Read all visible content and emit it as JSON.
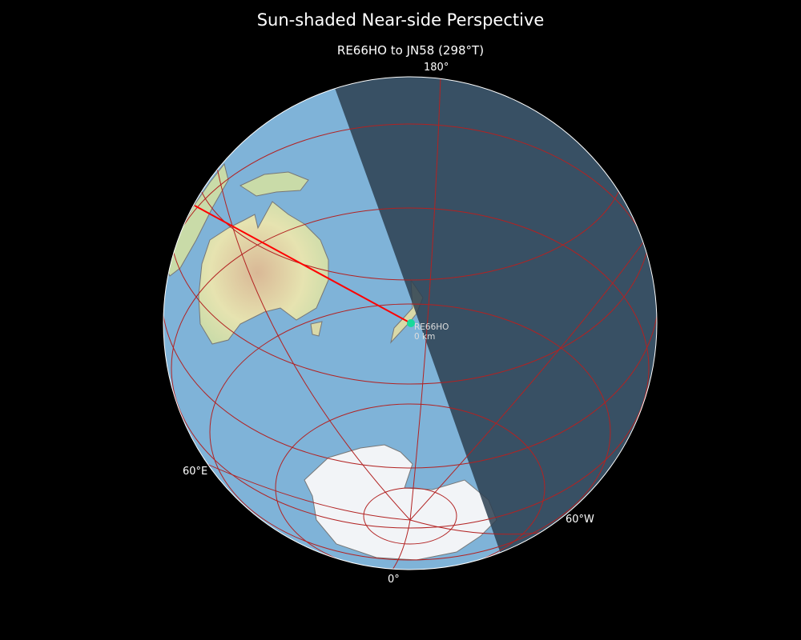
{
  "title": "Sun-shaded Near-side Perspective",
  "subtitle": "RE66HO to JN58 (298°T)",
  "longitude_labels": {
    "top": "180°",
    "left": "60°E",
    "right": "60°W",
    "bottom": "0°"
  },
  "marker": {
    "name": "RE66HO",
    "distance": "0 km",
    "color": "#19d99a"
  },
  "path": {
    "from": "RE66HO",
    "to": "JN58",
    "bearing": "298°T",
    "color": "#ff0000"
  },
  "colors": {
    "ocean": "#7fb3d8",
    "night": "#2c3e50",
    "graticule": "#b22222",
    "land": "#d9d9a8",
    "ice": "#f2f4f7"
  }
}
